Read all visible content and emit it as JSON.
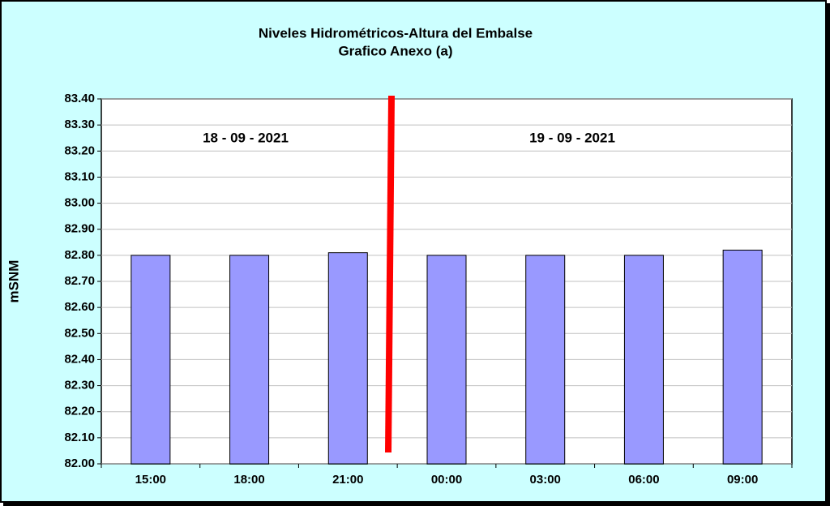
{
  "chart_data": {
    "type": "bar",
    "title": "Niveles Hidrométricos-Altura del Embalse",
    "subtitle": "Grafico Anexo (a)",
    "y_label": "mSNM",
    "annotations": [
      "18 - 09 - 2021",
      "19 - 09 - 2021"
    ],
    "categories": [
      "15:00",
      "18:00",
      "21:00",
      "00:00",
      "03:00",
      "06:00",
      "09:00"
    ],
    "values": [
      82.8,
      82.8,
      82.81,
      82.8,
      82.8,
      82.8,
      82.82
    ],
    "color": "#9999ff",
    "ylim": [
      82.0,
      83.4
    ],
    "yticks": [
      {
        "value": 82.0,
        "label": "82.00"
      },
      {
        "value": 82.1,
        "label": "82.10"
      },
      {
        "value": 82.2,
        "label": "82.20"
      },
      {
        "value": 82.3,
        "label": "82.30"
      },
      {
        "value": 82.4,
        "label": "82.40"
      },
      {
        "value": 82.5,
        "label": "82.50"
      },
      {
        "value": 82.6,
        "label": "82.60"
      },
      {
        "value": 82.7,
        "label": "82.70"
      },
      {
        "value": 82.8,
        "label": "82.80"
      },
      {
        "value": 82.9,
        "label": "82.90"
      },
      {
        "value": 83.0,
        "label": "83.00"
      },
      {
        "value": 83.1,
        "label": "83.10"
      },
      {
        "value": 83.2,
        "label": "83.20"
      },
      {
        "value": 83.3,
        "label": "83.30"
      },
      {
        "value": 83.4,
        "label": "83.40"
      }
    ],
    "grid": true
  }
}
